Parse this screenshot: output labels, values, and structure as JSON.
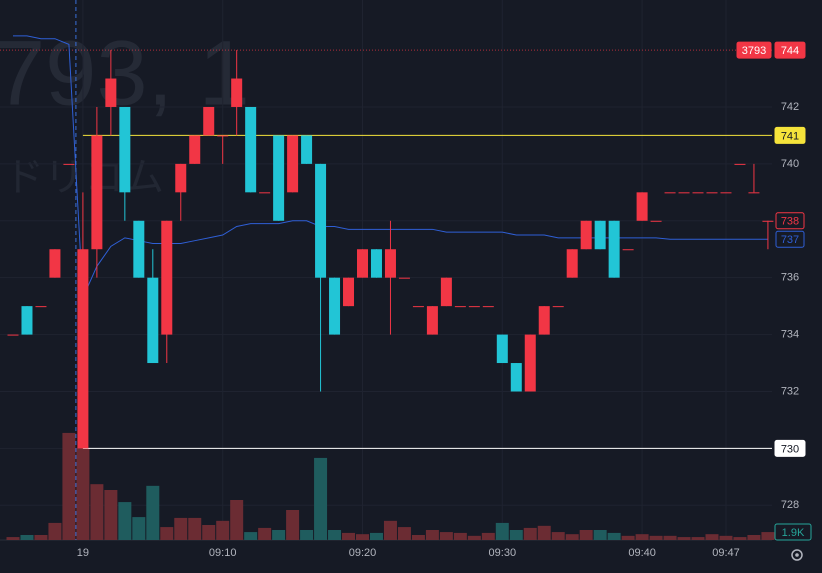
{
  "chart_data": {
    "type": "candlestick",
    "symbol": "3793",
    "watermark": "793, 1",
    "watermark_name": "ドリコム",
    "up_color": "#f23645",
    "down_color": "#22c5d6",
    "ylim": [
      726.78,
      745.76
    ],
    "yticks": [
      728,
      730,
      732,
      734,
      736,
      738,
      740,
      742
    ],
    "grid": true,
    "xticks": [
      {
        "value": 5,
        "label": "19"
      },
      {
        "value": 15,
        "label": "09:10"
      },
      {
        "value": 25,
        "label": "09:20"
      },
      {
        "value": 35,
        "label": "09:30"
      },
      {
        "value": 45,
        "label": "09:40"
      },
      {
        "value": 51,
        "label": "09:47"
      }
    ],
    "open": [
      734,
      735,
      735,
      736,
      740,
      730,
      737,
      742,
      742,
      738,
      736,
      734,
      739,
      740,
      741,
      741,
      742,
      742,
      739,
      741,
      739,
      741,
      740,
      736,
      735,
      736,
      737,
      736,
      736,
      735,
      734,
      735,
      735,
      735,
      735,
      734,
      733,
      732,
      734,
      735,
      736,
      737,
      738,
      738,
      737,
      738,
      738,
      739,
      739,
      739,
      739,
      739,
      740,
      739,
      738
    ],
    "high": [
      734,
      735,
      735,
      737,
      740,
      739,
      742,
      744,
      742,
      738,
      737,
      738,
      740,
      741,
      742,
      741,
      744,
      742,
      739,
      741,
      741,
      741,
      740,
      736,
      736,
      737,
      737,
      738,
      736,
      735,
      735,
      736,
      735,
      735,
      735,
      734,
      733,
      734,
      735,
      735,
      737,
      738,
      738,
      738,
      737,
      739,
      738,
      739,
      739,
      739,
      739,
      739,
      740,
      740,
      738
    ],
    "low": [
      734,
      734,
      735,
      736,
      740,
      730,
      736,
      741,
      738,
      736,
      733,
      733,
      738,
      740,
      741,
      740,
      741,
      739,
      739,
      738,
      739,
      740,
      732,
      734,
      735,
      736,
      736,
      734,
      736,
      735,
      734,
      735,
      735,
      735,
      735,
      733,
      732,
      732,
      734,
      735,
      736,
      737,
      737,
      736,
      737,
      738,
      738,
      739,
      739,
      739,
      739,
      739,
      740,
      739,
      737
    ],
    "close": [
      734,
      734,
      735,
      737,
      740,
      737,
      741,
      743,
      739,
      736,
      733,
      738,
      740,
      741,
      742,
      741,
      743,
      739,
      739,
      738,
      741,
      740,
      736,
      734,
      736,
      737,
      736,
      737,
      736,
      735,
      735,
      736,
      735,
      735,
      735,
      733,
      732,
      734,
      735,
      735,
      737,
      738,
      737,
      736,
      737,
      739,
      738,
      739,
      739,
      739,
      739,
      739,
      740,
      739,
      738
    ],
    "volume": [
      700,
      1200,
      1200,
      4100,
      25700,
      22100,
      13400,
      12000,
      9100,
      5500,
      13000,
      3100,
      5300,
      5300,
      3600,
      4600,
      9600,
      1900,
      2900,
      2400,
      7200,
      2400,
      19700,
      2400,
      1700,
      1400,
      1700,
      4600,
      3100,
      1200,
      2400,
      1900,
      1700,
      1000,
      1700,
      4100,
      2400,
      2900,
      3400,
      1900,
      1400,
      2400,
      2400,
      1700,
      1000,
      1400,
      1000,
      1000,
      700,
      700,
      1400,
      1000,
      700,
      1200,
      1900
    ],
    "volume_lim": [
      0,
      30000
    ],
    "volume_last_label": "1.9K",
    "volume_up_color": "#6b2c33",
    "volume_down_color": "#1f5c5e",
    "vwap": {
      "color": "#2f5fd6",
      "values": [
        744.5,
        744.5,
        744.4,
        744.4,
        744.2,
        735.3,
        736.4,
        737.1,
        737.4,
        737.3,
        737.2,
        737.2,
        737.2,
        737.3,
        737.4,
        737.5,
        737.8,
        737.9,
        737.9,
        737.9,
        738.0,
        738.0,
        737.8,
        737.8,
        737.7,
        737.7,
        737.7,
        737.7,
        737.7,
        737.7,
        737.7,
        737.6,
        737.6,
        737.6,
        737.6,
        737.6,
        737.5,
        737.5,
        737.5,
        737.4,
        737.4,
        737.4,
        737.4,
        737.4,
        737.4,
        737.4,
        737.4,
        737.35,
        737.35,
        737.35,
        737.35,
        737.35,
        737.35,
        737.35,
        737.35
      ],
      "last_label": "737"
    },
    "high_line": 744,
    "levels": [
      {
        "value": 741,
        "color": "#f5e33b"
      },
      {
        "value": 730,
        "color": "#ffffff"
      }
    ],
    "last_price": 738
  }
}
